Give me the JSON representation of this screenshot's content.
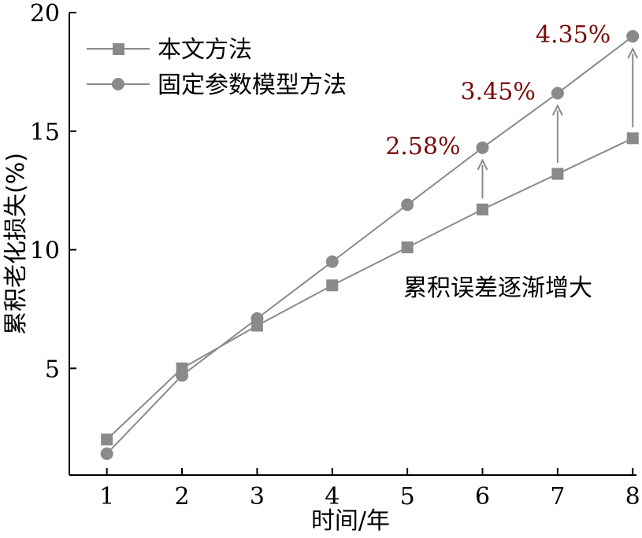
{
  "chart_data": {
    "type": "line",
    "title": "",
    "xlabel": "时间/年",
    "ylabel": "累积老化损失(%)",
    "x": [
      1,
      2,
      3,
      4,
      5,
      6,
      7,
      8
    ],
    "xlim": [
      0.5,
      8.05
    ],
    "ylim": [
      0.5,
      20
    ],
    "yticks": [
      5,
      10,
      15,
      20
    ],
    "grid": false,
    "legend_position": "top-left",
    "series": [
      {
        "name": "本文方法",
        "marker": "square",
        "color": "#8a8a8a",
        "values": [
          2.0,
          5.0,
          6.8,
          8.5,
          10.1,
          11.7,
          13.2,
          14.7
        ]
      },
      {
        "name": "固定参数模型方法",
        "marker": "circle",
        "color": "#8a8a8a",
        "values": [
          1.4,
          4.7,
          7.1,
          9.5,
          11.9,
          14.3,
          16.6,
          19.0
        ]
      }
    ],
    "annotations": [
      {
        "x": 6,
        "text": "2.58%"
      },
      {
        "x": 7,
        "text": "3.45%"
      },
      {
        "x": 8,
        "text": "4.35%"
      }
    ],
    "note": "累积误差逐渐增大",
    "annotation_color": "#7a0a0a"
  }
}
